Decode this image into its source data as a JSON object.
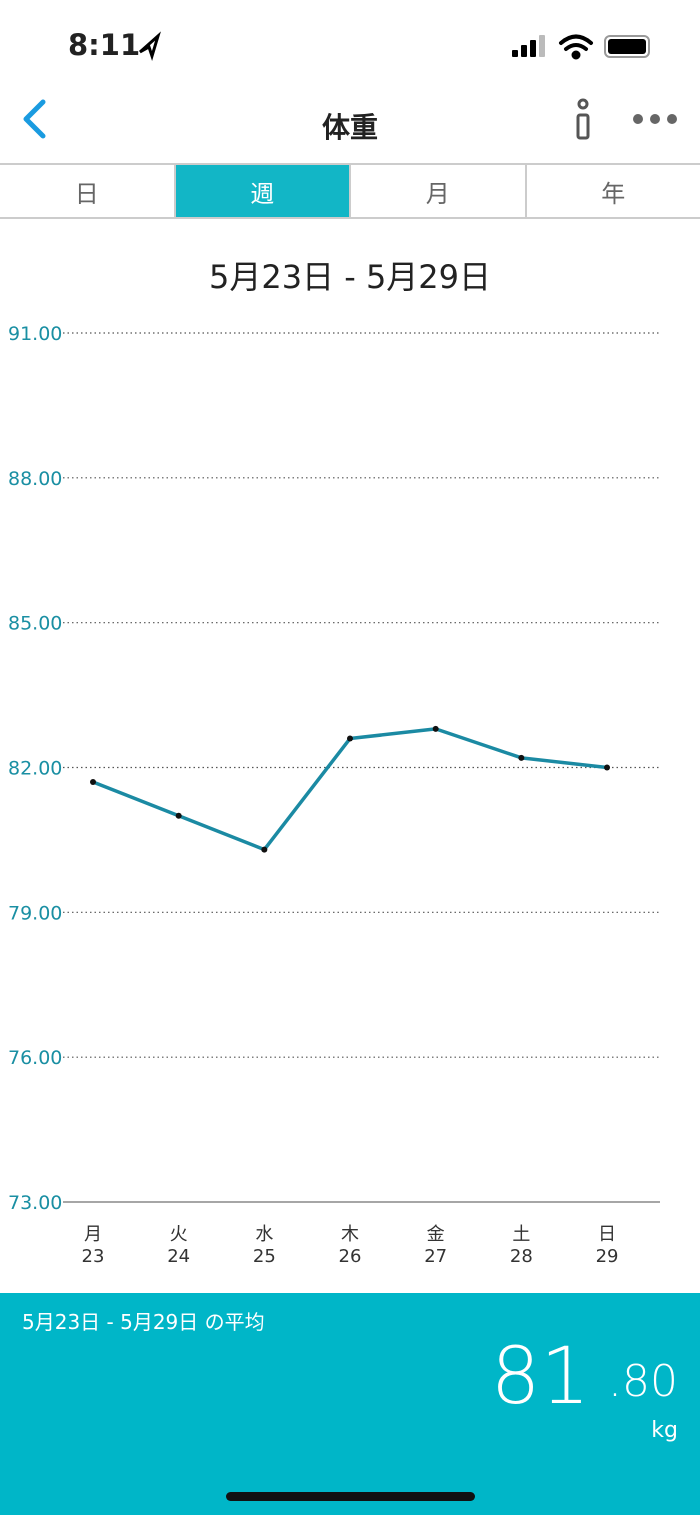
{
  "status_bar": {
    "time": "8:11"
  },
  "nav": {
    "title": "体重"
  },
  "tabs": {
    "items": [
      "日",
      "週",
      "月",
      "年"
    ],
    "selected": 1
  },
  "chart_data": {
    "type": "line",
    "title": "5月23日 - 5月29日",
    "categories": [
      "月",
      "火",
      "水",
      "木",
      "金",
      "土",
      "日"
    ],
    "dates": [
      "23",
      "24",
      "25",
      "26",
      "27",
      "28",
      "29"
    ],
    "values": [
      81.7,
      81.0,
      80.3,
      82.6,
      82.8,
      82.2,
      82.0
    ],
    "color": "#1b8aa3",
    "ylim": [
      73,
      91
    ],
    "yticks": [
      {
        "value": 73,
        "label": "73.00"
      },
      {
        "value": 76,
        "label": "76.00"
      },
      {
        "value": 79,
        "label": "79.00"
      },
      {
        "value": 82,
        "label": "82.00"
      },
      {
        "value": 85,
        "label": "85.00"
      },
      {
        "value": 88,
        "label": "88.00"
      },
      {
        "value": 91,
        "label": "91.00"
      }
    ],
    "grid": true
  },
  "summary": {
    "label": "5月23日 - 5月29日 の平均",
    "integer": "81",
    "decimal": ".80",
    "unit": "kg"
  }
}
